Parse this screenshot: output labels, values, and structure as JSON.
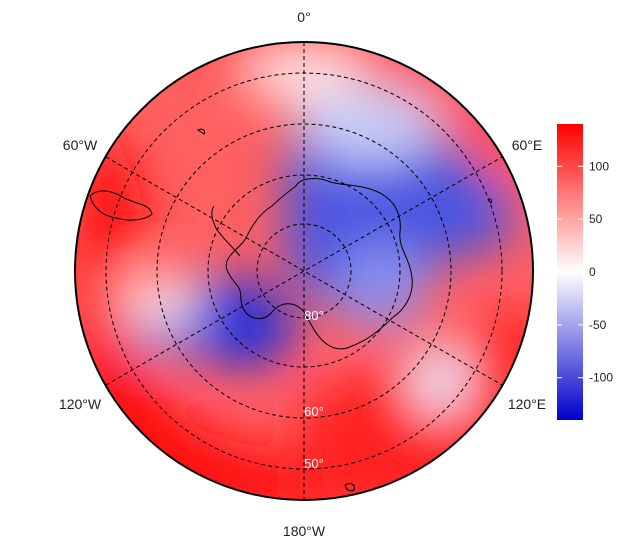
{
  "map": {
    "projection": "south-polar-stereographic",
    "longitude_labels": {
      "top": "0°",
      "upper_left": "60°W",
      "upper_right": "60°E",
      "lower_left": "120°W",
      "lower_right": "120°E",
      "bottom": "180°W"
    },
    "latitude_labels": [
      "80°",
      "60°",
      "50°"
    ]
  },
  "colorbar": {
    "ticks": [
      "100",
      "50",
      "0",
      "-50",
      "-100"
    ],
    "tick_values": [
      100,
      50,
      0,
      -50,
      -100
    ],
    "range": [
      -140,
      140
    ],
    "colors": {
      "high": "#ff0000",
      "mid": "#ffffff",
      "low": "#0000ff"
    }
  }
}
